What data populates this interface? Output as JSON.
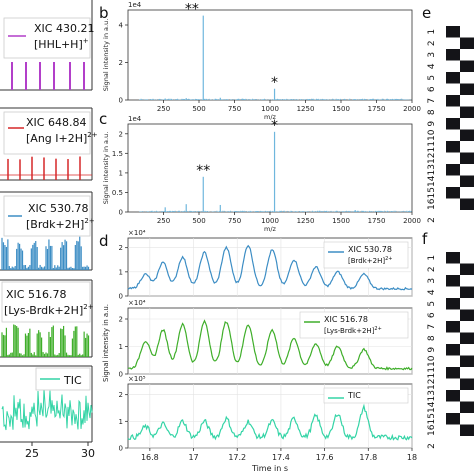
{
  "panel_letters": [
    "b",
    "c",
    "d",
    "e",
    "f"
  ],
  "left_column": {
    "labels": [
      {
        "line1": "XIC 430.21",
        "line2": "[HHL+H]",
        "sup": "+"
      },
      {
        "line1": "XIC 648.84",
        "line2": "[Ang I+2H]",
        "sup": "2+"
      },
      {
        "line1": "XIC 530.78",
        "line2": "[Brdk+2H]",
        "sup": "2+"
      },
      {
        "line1": "XIC 516.78",
        "line2": "[Lys-Brdk+2H]",
        "sup": "2+"
      },
      {
        "line1": "TIC",
        "line2": "",
        "sup": ""
      }
    ],
    "x_ticks": [
      "25",
      "30"
    ]
  },
  "colors": {
    "purple": "#b23fc9",
    "red": "#d62728",
    "blue": "#3c8dc4",
    "green": "#3fae2a",
    "teal": "#34d4a6",
    "spectrum": "#6fb7dd",
    "grid": "#e3e3e3",
    "axis": "#333333"
  },
  "chart_data": [
    {
      "panel": "b",
      "type": "line",
      "xlabel": "m/z",
      "ylabel": "Signal intensity in a.u.",
      "exponent_label": "1e4",
      "xlim": [
        0,
        2000
      ],
      "ylim": [
        0,
        4.8
      ],
      "x_ticks": [
        250,
        500,
        750,
        1000,
        1250,
        1500,
        1750,
        2000
      ],
      "y_ticks": [
        0,
        2,
        4
      ],
      "peaks": [
        [
          530,
          4.5
        ],
        [
          1032,
          0.6
        ],
        [
          262,
          0.08
        ],
        [
          410,
          0.1
        ],
        [
          650,
          0.12
        ],
        [
          1600,
          0.05
        ]
      ],
      "annotations": [
        {
          "text": "**",
          "x": 450
        },
        {
          "text": "*",
          "x": 1032
        }
      ]
    },
    {
      "panel": "c",
      "type": "line",
      "xlabel": "m/z",
      "ylabel": "Signal intensity in a.u.",
      "exponent_label": "1e4",
      "xlim": [
        0,
        2000
      ],
      "ylim": [
        0,
        2.25
      ],
      "x_ticks": [
        250,
        500,
        750,
        1000,
        1250,
        1500,
        1750,
        2000
      ],
      "y_ticks": [
        0,
        0.5,
        1.0,
        1.5,
        2.0
      ],
      "peaks": [
        [
          530,
          0.9
        ],
        [
          1032,
          2.05
        ],
        [
          262,
          0.12
        ],
        [
          410,
          0.2
        ],
        [
          650,
          0.18
        ],
        [
          1600,
          0.05
        ]
      ],
      "annotations": [
        {
          "text": "**",
          "x": 530
        },
        {
          "text": "*",
          "x": 1032
        }
      ]
    },
    {
      "panel": "d",
      "type": "line",
      "xlabel": "Time in s",
      "ylabel": "Signal intensity in a.u.",
      "xlim": [
        16.7,
        18.0
      ],
      "x_ticks": [
        16.8,
        17,
        17.2,
        17.4,
        17.6,
        17.8,
        18
      ],
      "series": [
        {
          "name": "XIC 530.78",
          "ion": "[Brdk+2H]",
          "charge": "2+",
          "exponent_label": "×10⁴",
          "y_ticks": [
            0,
            1,
            2
          ],
          "ylim": [
            0,
            2.4
          ],
          "peak_times": [
            16.78,
            16.86,
            16.95,
            17.05,
            17.15,
            17.25,
            17.36,
            17.46,
            17.56,
            17.66,
            17.78
          ],
          "peak_values": [
            0.9,
            1.4,
            1.6,
            1.8,
            2.0,
            2.1,
            1.9,
            1.5,
            1.2,
            1.0,
            0.9
          ],
          "baseline": 0.3
        },
        {
          "name": "XIC 516.78",
          "ion": "[Lys-Brdk+2H]",
          "charge": "2+",
          "exponent_label": "×10⁴",
          "y_ticks": [
            0,
            1,
            2
          ],
          "ylim": [
            0,
            2.4
          ],
          "peak_times": [
            16.78,
            16.86,
            16.95,
            17.05,
            17.15,
            17.25,
            17.36,
            17.46,
            17.56,
            17.66,
            17.78
          ],
          "peak_values": [
            1.2,
            1.6,
            1.8,
            1.9,
            1.9,
            1.8,
            1.6,
            1.3,
            1.1,
            1.0,
            0.9
          ],
          "baseline": 0.2
        },
        {
          "name": "TIC",
          "ion": "",
          "charge": "",
          "exponent_label": "×10⁵",
          "y_ticks": [
            0,
            1,
            2
          ],
          "ylim": [
            0,
            2.4
          ],
          "peak_times": [
            16.78,
            16.86,
            16.95,
            17.05,
            17.15,
            17.25,
            17.36,
            17.46,
            17.56,
            17.66,
            17.78
          ],
          "peak_values": [
            0.8,
            0.9,
            1.0,
            1.0,
            1.1,
            1.0,
            1.0,
            1.1,
            1.2,
            1.3,
            1.5
          ],
          "baseline": 0.4
        }
      ]
    }
  ],
  "grid_e": {
    "rows": [
      "1",
      "2",
      "3",
      "4",
      "5",
      "6",
      "7",
      "8",
      "9",
      "10",
      "11",
      "12",
      "13",
      "14",
      "15",
      "16"
    ],
    "corner": "2"
  },
  "grid_f": {
    "rows": [
      "1",
      "2",
      "3",
      "4",
      "5",
      "6",
      "7",
      "8",
      "9",
      "10",
      "11",
      "12",
      "13",
      "14",
      "15",
      "16"
    ],
    "corner": "2"
  }
}
